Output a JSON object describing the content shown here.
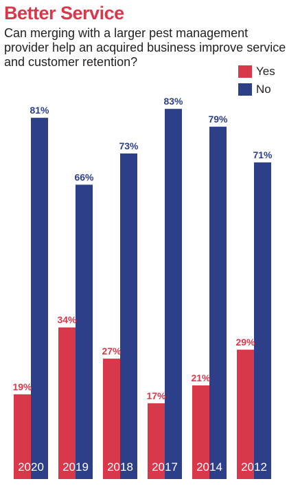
{
  "chart_data": {
    "type": "bar",
    "title": "Better Service",
    "subtitle": "Can merging with a larger pest management provider help an acquired business improve service and customer retention?",
    "categories": [
      "2020",
      "2019",
      "2018",
      "2017",
      "2014",
      "2012"
    ],
    "series": [
      {
        "name": "Yes",
        "color": "#d9384a",
        "values": [
          19,
          34,
          27,
          17,
          21,
          29
        ],
        "labels": [
          "19%",
          "34%",
          "27%",
          "17%",
          "21%",
          "29%"
        ]
      },
      {
        "name": "No",
        "color": "#2e3f8a",
        "values": [
          81,
          66,
          73,
          83,
          79,
          71
        ],
        "labels": [
          "81%",
          "66%",
          "73%",
          "83%",
          "79%",
          "71%"
        ]
      }
    ],
    "xlabel": "",
    "ylabel": "",
    "ylim": [
      0,
      100
    ],
    "grid": false,
    "legend_position": "top-right"
  }
}
